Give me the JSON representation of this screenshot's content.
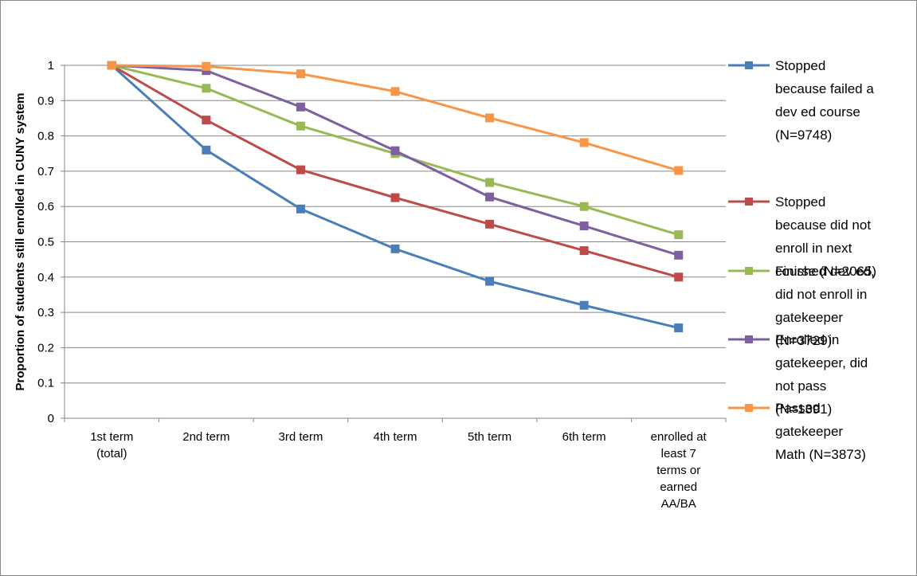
{
  "chart_data": {
    "type": "line",
    "title": "",
    "xlabel": "",
    "ylabel": "Proportion of students still enrolled in CUNY system",
    "ylim": [
      0,
      1
    ],
    "yticks": [
      "0",
      "0.1",
      "0.2",
      "0.3",
      "0.4",
      "0.5",
      "0.6",
      "0.7",
      "0.8",
      "0.9",
      "1"
    ],
    "grid": true,
    "legend_position": "right",
    "categories": [
      [
        "1st term",
        "(total)"
      ],
      [
        "2nd term"
      ],
      [
        "3rd term"
      ],
      [
        "4th term"
      ],
      [
        "5th term"
      ],
      [
        "6th term"
      ],
      [
        "enrolled at",
        "least 7",
        "terms or",
        "earned",
        "AA/BA"
      ]
    ],
    "series": [
      {
        "name": "Stopped because failed a dev ed course (N=9748)",
        "name_lines": [
          "Stopped",
          "because failed a",
          "dev ed course",
          "(N=9748)"
        ],
        "color": "#4a7ebb",
        "values": [
          1.0,
          0.76,
          0.593,
          0.48,
          0.388,
          0.32,
          0.256
        ]
      },
      {
        "name": "Stopped because did not enroll in next course (N=2065)",
        "name_lines": [
          "Stopped",
          "because did not",
          "enroll in next",
          "course (N=2065)"
        ],
        "color": "#be4b48",
        "values": [
          1.0,
          0.845,
          0.704,
          0.625,
          0.55,
          0.475,
          0.4
        ]
      },
      {
        "name": "Finished dev ed, did not enroll in gatekeeper (N=3729)",
        "name_lines": [
          "Finished dev ed,",
          "did not enroll in",
          "gatekeeper",
          "(N=3729)"
        ],
        "color": "#98b954",
        "values": [
          1.0,
          0.935,
          0.828,
          0.75,
          0.668,
          0.6,
          0.52
        ]
      },
      {
        "name": "Enrolled in gatekeeper, did not pass (N=1391)",
        "name_lines": [
          "Enrolled in",
          "gatekeeper, did",
          "not pass",
          "(N=1391)"
        ],
        "color": "#7d60a0",
        "values": [
          1.0,
          0.985,
          0.882,
          0.758,
          0.627,
          0.545,
          0.462
        ]
      },
      {
        "name": "Passed gatekeeper Math (N=3873)",
        "name_lines": [
          "Passed",
          "gatekeeper",
          "Math (N=3873)"
        ],
        "color": "#f79646",
        "values": [
          1.0,
          0.997,
          0.976,
          0.926,
          0.851,
          0.781,
          0.702
        ]
      }
    ]
  }
}
